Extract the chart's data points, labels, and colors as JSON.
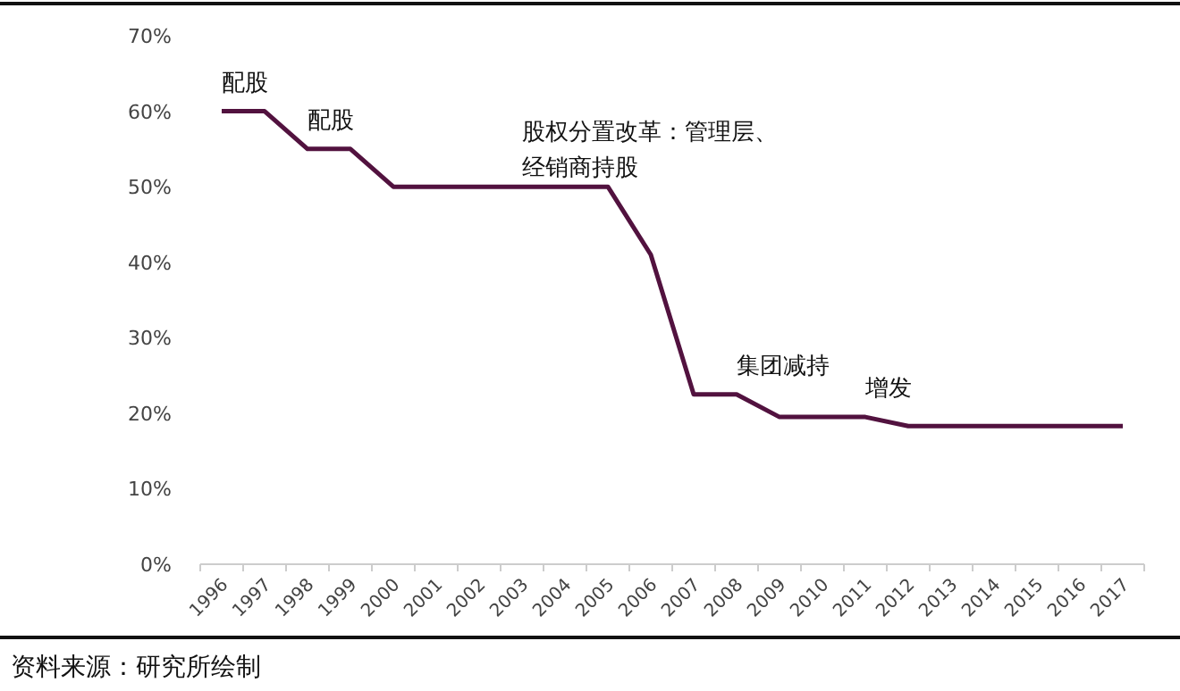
{
  "chart_data": {
    "type": "line",
    "categories": [
      "1996",
      "1997",
      "1998",
      "1999",
      "2000",
      "2001",
      "2002",
      "2003",
      "2004",
      "2005",
      "2006",
      "2007",
      "2008",
      "2009",
      "2010",
      "2011",
      "2012",
      "2013",
      "2014",
      "2015",
      "2016",
      "2017"
    ],
    "series": [
      {
        "color": "#52123f",
        "values": [
          60,
          60,
          55,
          55,
          50,
          50,
          50,
          50,
          50,
          50,
          41,
          22.5,
          22.5,
          19.5,
          19.5,
          19.5,
          18.3,
          18.3,
          18.3,
          18.3,
          18.3,
          18.3
        ]
      }
    ],
    "ylim": [
      0,
      70
    ],
    "yticks": [
      {
        "value": 0,
        "label": "0%"
      },
      {
        "value": 10,
        "label": "10%"
      },
      {
        "value": 20,
        "label": "20%"
      },
      {
        "value": 30,
        "label": "30%"
      },
      {
        "value": 40,
        "label": "40%"
      },
      {
        "value": 50,
        "label": "50%"
      },
      {
        "value": 60,
        "label": "60%"
      },
      {
        "value": 70,
        "label": "70%"
      }
    ],
    "grid": false,
    "marker": "none",
    "line_style": "solid",
    "annotations": [
      {
        "text": "配股",
        "x": "1996",
        "y": 60
      },
      {
        "text": "配股",
        "x": "1998",
        "y": 55
      },
      "股权分置改革：管理层、",
      "经销商持股",
      {
        "text": "集团减持",
        "x": "2008",
        "y": 22.5
      },
      {
        "text": "增发",
        "x": "2011",
        "y": 19.5
      },
      "资料来源：研究所绘制"
    ]
  }
}
